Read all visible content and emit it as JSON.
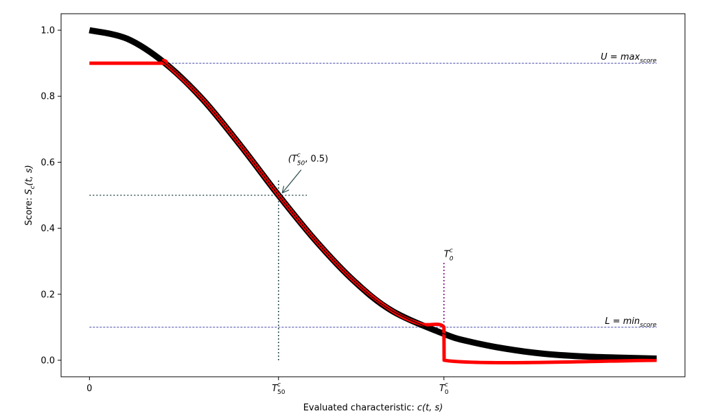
{
  "chart_data": {
    "type": "line",
    "title": "",
    "xlabel": {
      "text": "Evaluated characteristic: ",
      "math": "c(t, s)"
    },
    "ylabel": {
      "text": "Score: ",
      "math": "S",
      "sub": "c",
      "tail": "(t, s)"
    },
    "x_ticks": [
      {
        "x": 0,
        "base": "0"
      },
      {
        "x": 1,
        "base": "T",
        "sup": "c",
        "sub": "50"
      },
      {
        "x": 1.875,
        "base": "T",
        "sup": "c",
        "sub": "0"
      }
    ],
    "y_ticks": [
      "0.0",
      "0.2",
      "0.4",
      "0.6",
      "0.8",
      "1.0"
    ],
    "xlim": [
      -0.15,
      3.15
    ],
    "ylim": [
      -0.05,
      1.05
    ],
    "grid": false,
    "legend": "none",
    "series": [
      {
        "color": "#000000",
        "x": [
          0,
          0.2,
          0.4,
          0.6,
          0.8,
          1.0,
          1.2,
          1.4,
          1.6,
          1.875,
          2.0,
          2.2,
          2.4,
          2.6,
          2.8,
          3.0
        ],
        "y": [
          1.0,
          0.974,
          0.9,
          0.79,
          0.65,
          0.5,
          0.36,
          0.24,
          0.15,
          0.08,
          0.058,
          0.035,
          0.02,
          0.012,
          0.008,
          0.005
        ]
      },
      {
        "color": "#ff0000",
        "x": [
          0,
          0.38,
          0.4,
          0.6,
          0.8,
          1.0,
          1.2,
          1.4,
          1.6,
          1.75,
          1.875,
          1.876,
          3.0
        ],
        "y": [
          0.9,
          0.9,
          0.9,
          0.79,
          0.65,
          0.5,
          0.36,
          0.24,
          0.15,
          0.11,
          0.1,
          0.0,
          0.0
        ]
      }
    ],
    "hlines": [
      {
        "y": 0.9,
        "x0": 0,
        "x1": 3.0,
        "color": "#00008b",
        "style": "dashed",
        "label": {
          "base": "U = max",
          "sub": "score"
        }
      },
      {
        "y": 0.1,
        "x0": 0,
        "x1": 3.0,
        "color": "#00008b",
        "style": "dashed",
        "label": {
          "base": "L = min",
          "sub": "score"
        }
      }
    ],
    "guide_lines": [
      {
        "kind": "h",
        "y": 0.5,
        "x0": 0,
        "x1": 1.15,
        "color": "#2f4f4f"
      },
      {
        "kind": "v",
        "x": 1.0,
        "y0": 0,
        "y1": 0.545,
        "color": "#2f4f4f"
      },
      {
        "kind": "v",
        "x": 1.875,
        "y0": 0,
        "y1": 0.3,
        "color": "#800080"
      }
    ],
    "annotations": [
      {
        "text": "(T",
        "sup": "c",
        "sub": "50",
        "tail": ", 0.5)",
        "point": [
          1.0,
          0.5
        ],
        "arrow": true
      },
      {
        "text": "T",
        "sup": "c",
        "sub": "0",
        "point": [
          1.875,
          0.3
        ],
        "arrow": false
      }
    ]
  }
}
